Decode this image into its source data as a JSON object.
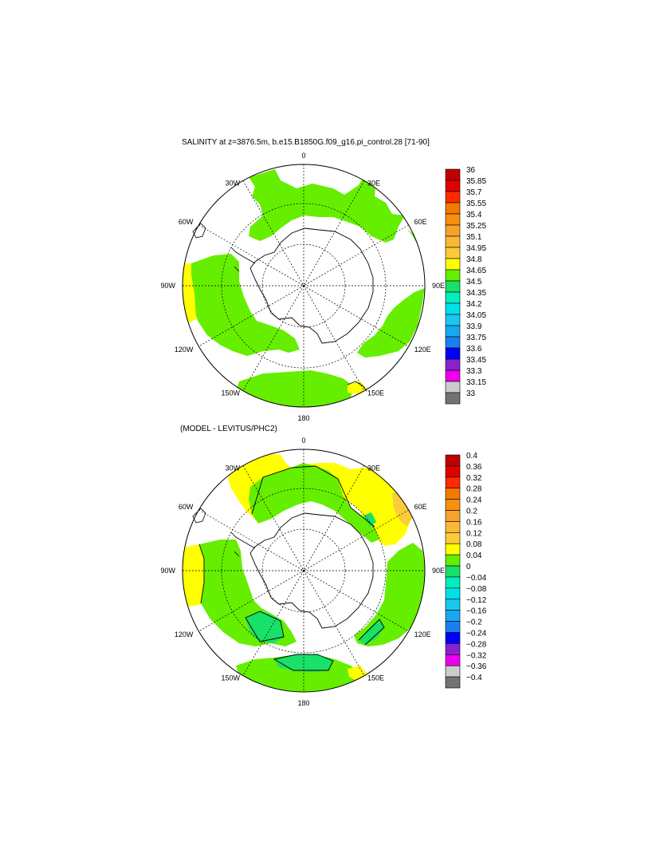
{
  "chart_data": [
    {
      "type": "heatmap",
      "projection": "south-polar-stereographic",
      "title": "SALINITY at z=3876.5m, b.e15.B1850G.f09_g16.pi_control.28 [71-90]",
      "longitude_labels": [
        "0",
        "30E",
        "60E",
        "90E",
        "120E",
        "150E",
        "180",
        "150W",
        "120W",
        "90W",
        "60W",
        "30W"
      ],
      "colorbar": {
        "levels": [
          "36",
          "35.85",
          "35.7",
          "35.55",
          "35.4",
          "35.25",
          "35.1",
          "34.95",
          "34.8",
          "34.65",
          "34.5",
          "34.35",
          "34.2",
          "34.05",
          "33.9",
          "33.75",
          "33.6",
          "33.45",
          "33.3",
          "33.15",
          "33"
        ],
        "colors": [
          "#c00000",
          "#e00000",
          "#ff2a00",
          "#f27a00",
          "#f78f10",
          "#f8a22a",
          "#fbb838",
          "#fbcb3a",
          "#ffff00",
          "#66ee00",
          "#18e068",
          "#00eec0",
          "#00e0e8",
          "#18c8f0",
          "#18a8f0",
          "#1880f0",
          "#0000ff",
          "#8822cc",
          "#ee00ee",
          "#cccccc",
          "#737373"
        ]
      },
      "dominant_value_range": [
        "34.65",
        "34.8"
      ],
      "field_note_colors": {
        "main": "#66ee00",
        "high": "#ffff00"
      }
    },
    {
      "type": "heatmap",
      "projection": "south-polar-stereographic",
      "title": "(MODEL - LEVITUS/PHC2)",
      "longitude_labels": [
        "0",
        "30E",
        "60E",
        "90E",
        "120E",
        "150E",
        "180",
        "150W",
        "120W",
        "90W",
        "60W",
        "30W"
      ],
      "colorbar": {
        "levels": [
          "0.4",
          "0.36",
          "0.32",
          "0.28",
          "0.24",
          "0.2",
          "0.16",
          "0.12",
          "0.08",
          "0.04",
          "0",
          "−0.04",
          "−0.08",
          "−0.12",
          "−0.16",
          "−0.2",
          "−0.24",
          "−0.28",
          "−0.32",
          "−0.36",
          "−0.4"
        ],
        "colors": [
          "#c00000",
          "#e00000",
          "#ff2a00",
          "#f27a00",
          "#f78f10",
          "#f8a22a",
          "#fbb838",
          "#fbcb3a",
          "#ffff00",
          "#66ee00",
          "#18e068",
          "#00eec0",
          "#00e0e8",
          "#18c8f0",
          "#18a8f0",
          "#1880f0",
          "#0000ff",
          "#8822cc",
          "#ee00ee",
          "#cccccc",
          "#737373"
        ]
      },
      "field_note_colors": {
        "positive_small": "#66ee00",
        "positive_mid": "#ffff00",
        "near_zero": "#18e068",
        "positive_high": "#fbcb3a"
      }
    }
  ]
}
